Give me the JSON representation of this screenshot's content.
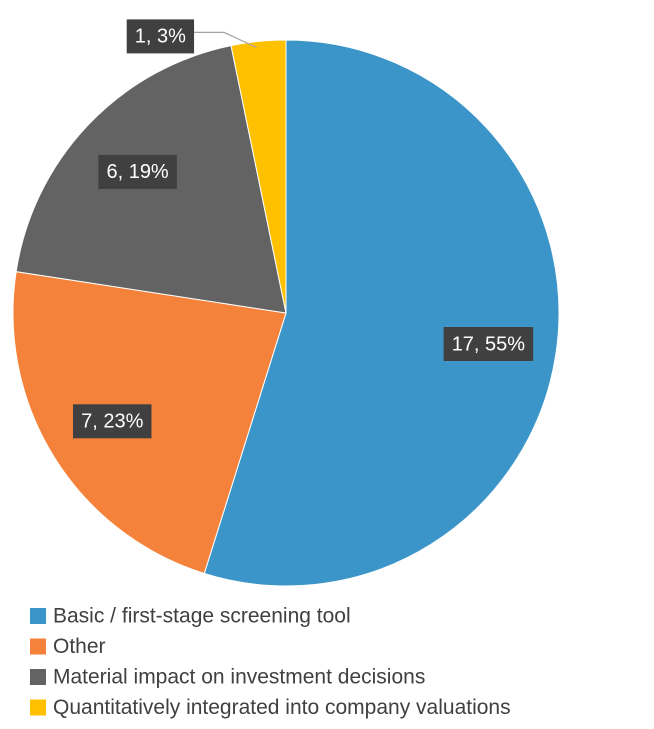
{
  "chart_data": {
    "type": "pie",
    "categories": [
      "Basic / first-stage screening tool",
      "Other",
      "Material impact on investment decisions",
      "Quantitatively integrated into company valuations"
    ],
    "values": [
      17,
      7,
      6,
      1
    ],
    "value_labels": [
      "17, 55%",
      "7, 23%",
      "6, 19%",
      "1, 3%"
    ],
    "colors": [
      "#3c95c8",
      "#f5823a",
      "#636363",
      "#ffc000"
    ],
    "legend": "bottom"
  }
}
